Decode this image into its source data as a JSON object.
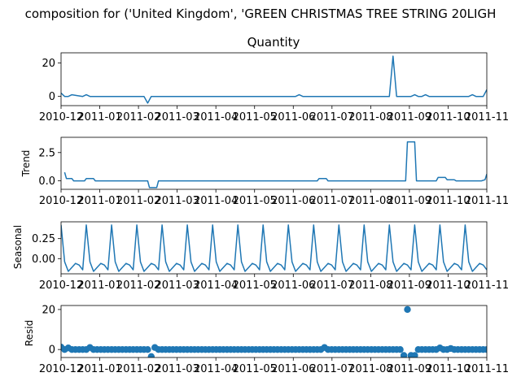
{
  "figure": {
    "suptitle": "composition for ('United Kingdom', 'GREEN CHRISTMAS TREE STRING 20LIGH",
    "line_color": "#1f77b4"
  },
  "x_ticks": [
    "2010-12",
    "2011-01",
    "2011-02",
    "2011-03",
    "2011-04",
    "2011-05",
    "2011-06",
    "2011-07",
    "2011-08",
    "2011-09",
    "2011-10",
    "2011-11"
  ],
  "chart_data": [
    {
      "type": "line",
      "title": "Quantity",
      "ylabel": "",
      "ylim": [
        -5.5,
        26
      ],
      "yticks": [
        0,
        20
      ],
      "ytick_labels": [
        "0",
        "20"
      ],
      "series": [
        {
          "name": "",
          "x": [
            0,
            1,
            2,
            3,
            6,
            7,
            8,
            23,
            24,
            25,
            65,
            66,
            67,
            91,
            92,
            93,
            97,
            98,
            99,
            100,
            101,
            102,
            103,
            111,
            112,
            113,
            114,
            115,
            116,
            117,
            118
          ],
          "y": [
            2,
            0,
            0,
            1,
            0,
            1,
            0,
            0,
            -4,
            0,
            0,
            1,
            0,
            0,
            24,
            0,
            0,
            1,
            0,
            0,
            1,
            0,
            0,
            0,
            0,
            0,
            1,
            0,
            0,
            0,
            4
          ]
        }
      ]
    },
    {
      "type": "line",
      "title": "",
      "ylabel": "Trend",
      "ylim": [
        -0.75,
        3.85
      ],
      "yticks": [
        0,
        2.5
      ],
      "ytick_labels": [
        "0.0",
        "2.5"
      ],
      "series": [
        {
          "name": "",
          "x": [
            1,
            1.5,
            3,
            3.5,
            6.5,
            7,
            9,
            9.5,
            24,
            24.5,
            26.5,
            27,
            71,
            71.5,
            73.5,
            74,
            95.5,
            96,
            98,
            98.5,
            104,
            104.5,
            106.5,
            107,
            109,
            109.5,
            116,
            116.5,
            117.5,
            118
          ],
          "y": [
            0.75,
            0.2,
            0.2,
            0,
            0,
            0.2,
            0.2,
            0,
            0,
            -0.6,
            -0.6,
            0,
            0,
            0.2,
            0.2,
            0,
            0,
            3.45,
            3.45,
            0,
            0,
            0.3,
            0.3,
            0.1,
            0.1,
            0,
            0,
            0,
            0.1,
            0.6
          ]
        }
      ]
    },
    {
      "type": "line",
      "title": "",
      "ylabel": "Seasonal",
      "ylim": [
        -0.19,
        0.46
      ],
      "yticks": [
        0,
        0.25
      ],
      "ytick_labels": [
        "0.00",
        "0.25"
      ],
      "period_days": 7,
      "pattern": [
        0.42,
        -0.04,
        -0.16,
        -0.11,
        -0.06,
        -0.08,
        -0.14
      ],
      "series": [
        {
          "name": "",
          "x_start": 0,
          "x_end": 118
        }
      ]
    },
    {
      "type": "scatter",
      "title": "",
      "ylabel": "Resid",
      "ylim": [
        -4,
        22
      ],
      "yticks": [
        0,
        20
      ],
      "ytick_labels": [
        "0",
        "20"
      ],
      "series": [
        {
          "name": "",
          "x_start": 0,
          "x_end": 118,
          "baseline": 0,
          "outliers": [
            [
              0,
              1.2
            ],
            [
              2,
              0.8
            ],
            [
              8,
              1
            ],
            [
              25,
              -3.5
            ],
            [
              26,
              1
            ],
            [
              73,
              1
            ],
            [
              95,
              -3
            ],
            [
              96,
              20
            ],
            [
              97,
              -3
            ],
            [
              98,
              -3
            ],
            [
              105,
              0.8
            ],
            [
              108,
              0.5
            ]
          ]
        }
      ]
    }
  ]
}
